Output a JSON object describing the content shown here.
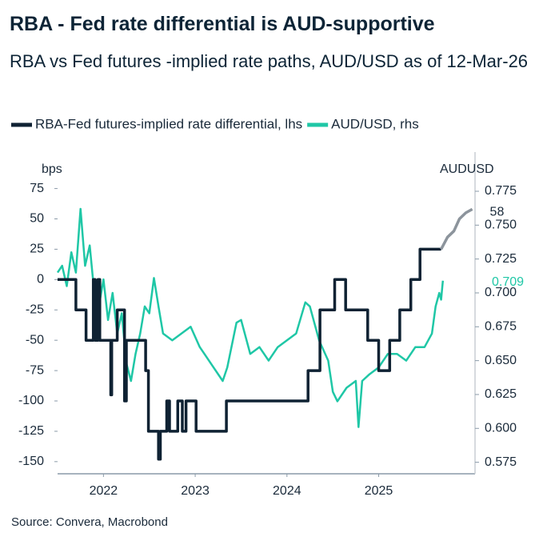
{
  "chart_data": {
    "type": "line",
    "title": "RBA - Fed rate differential is AUD-supportive",
    "subtitle": "RBA vs Fed futures -implied rate paths, AUD/USD as of 12-Mar-26",
    "source": "Source: Convera, Macrobond",
    "y_label": "bps",
    "y2_label": "AUDUSD",
    "xlim": [
      2022.0,
      2026.55
    ],
    "xticks": [
      {
        "value": 2022.5,
        "label": "2022"
      },
      {
        "value": 2023.5,
        "label": "2023"
      },
      {
        "value": 2024.5,
        "label": "2024"
      },
      {
        "value": 2025.5,
        "label": "2025"
      }
    ],
    "ylim": [
      -160,
      80
    ],
    "yticks": [
      75,
      50,
      25,
      0,
      -25,
      -50,
      -75,
      -100,
      -125,
      -150
    ],
    "y2lim": [
      0.5665,
      0.7815
    ],
    "y2ticks": [
      0.775,
      {
        "value": 0.75,
        "label": "0.750"
      },
      0.725,
      {
        "value": 0.7,
        "label": "0.700"
      },
      0.675,
      {
        "value": 0.65,
        "label": "0.650"
      },
      0.625,
      {
        "value": 0.6,
        "label": "0.600"
      },
      0.575
    ],
    "series": [
      {
        "name": "RBA-Fed futures-implied rate differential, lhs",
        "color": "#0f2233",
        "x": [
          2022.0,
          2022.2,
          2022.2,
          2022.31,
          2022.31,
          2022.39,
          2022.39,
          2022.41,
          2022.41,
          2022.44,
          2022.44,
          2022.46,
          2022.46,
          2022.58,
          2022.58,
          2022.59,
          2022.59,
          2022.65,
          2022.65,
          2022.73,
          2022.73,
          2022.75,
          2022.75,
          2022.96,
          2022.96,
          2022.99,
          2022.99,
          2023.1,
          2023.1,
          2023.12,
          2023.12,
          2023.19,
          2023.19,
          2023.22,
          2023.22,
          2023.31,
          2023.31,
          2023.36,
          2023.36,
          2023.4,
          2023.4,
          2023.51,
          2023.51,
          2023.84,
          2023.84,
          2024.73,
          2024.73,
          2024.86,
          2024.86,
          2025.02,
          2025.02,
          2025.14,
          2025.14,
          2025.38,
          2025.38,
          2025.5,
          2025.5,
          2025.62,
          2025.62,
          2025.73,
          2025.73,
          2025.85,
          2025.85,
          2025.95,
          2025.95,
          2026.18
        ],
        "values": [
          0,
          0,
          -25,
          -25,
          -50,
          -50,
          0,
          0,
          -50,
          -50,
          0,
          0,
          -50,
          -50,
          -95,
          -95,
          -50,
          -50,
          -25,
          -25,
          -100,
          -100,
          -50,
          -50,
          -75,
          -75,
          -125,
          -125,
          -148,
          -148,
          -125,
          -125,
          -100,
          -100,
          -125,
          -125,
          -100,
          -100,
          -125,
          -125,
          -100,
          -100,
          -125,
          -125,
          -100,
          -100,
          -75,
          -75,
          -25,
          -25,
          0,
          0,
          -25,
          -25,
          -50,
          -50,
          -75,
          -75,
          -50,
          -50,
          -25,
          -25,
          0,
          0,
          25,
          25
        ],
        "projection": {
          "color": "#8c949c",
          "x": [
            2026.18,
            2026.25,
            2026.32,
            2026.38,
            2026.45,
            2026.52
          ],
          "values": [
            25,
            35,
            40,
            50,
            55,
            58
          ],
          "value_label": "58"
        }
      },
      {
        "name": "AUD/USD, rhs",
        "color": "#1fc7a6",
        "axis": "y2",
        "value_label": "0.709",
        "x": [
          2022.0,
          2022.05,
          2022.1,
          2022.15,
          2022.2,
          2022.25,
          2022.3,
          2022.35,
          2022.4,
          2022.45,
          2022.5,
          2022.55,
          2022.6,
          2022.65,
          2022.7,
          2022.75,
          2022.8,
          2022.85,
          2022.9,
          2022.95,
          2023.0,
          2023.05,
          2023.1,
          2023.15,
          2023.25,
          2023.35,
          2023.45,
          2023.55,
          2023.6,
          2023.7,
          2023.8,
          2023.85,
          2023.95,
          2024.0,
          2024.1,
          2024.2,
          2024.3,
          2024.4,
          2024.5,
          2024.6,
          2024.7,
          2024.75,
          2024.85,
          2024.95,
          2025.0,
          2025.05,
          2025.15,
          2025.25,
          2025.28,
          2025.32,
          2025.4,
          2025.5,
          2025.6,
          2025.7,
          2025.8,
          2025.9,
          2026.0,
          2026.08,
          2026.12,
          2026.16,
          2026.18,
          2026.2
        ],
        "values": [
          0.715,
          0.72,
          0.705,
          0.73,
          0.715,
          0.762,
          0.72,
          0.735,
          0.7,
          0.69,
          0.71,
          0.68,
          0.7,
          0.67,
          0.685,
          0.648,
          0.635,
          0.655,
          0.67,
          0.69,
          0.685,
          0.711,
          0.69,
          0.67,
          0.665,
          0.67,
          0.675,
          0.66,
          0.655,
          0.645,
          0.635,
          0.645,
          0.678,
          0.68,
          0.655,
          0.66,
          0.65,
          0.66,
          0.665,
          0.67,
          0.693,
          0.69,
          0.665,
          0.65,
          0.627,
          0.62,
          0.63,
          0.635,
          0.601,
          0.635,
          0.64,
          0.645,
          0.655,
          0.655,
          0.65,
          0.66,
          0.66,
          0.67,
          0.69,
          0.7,
          0.695,
          0.709
        ]
      }
    ]
  }
}
